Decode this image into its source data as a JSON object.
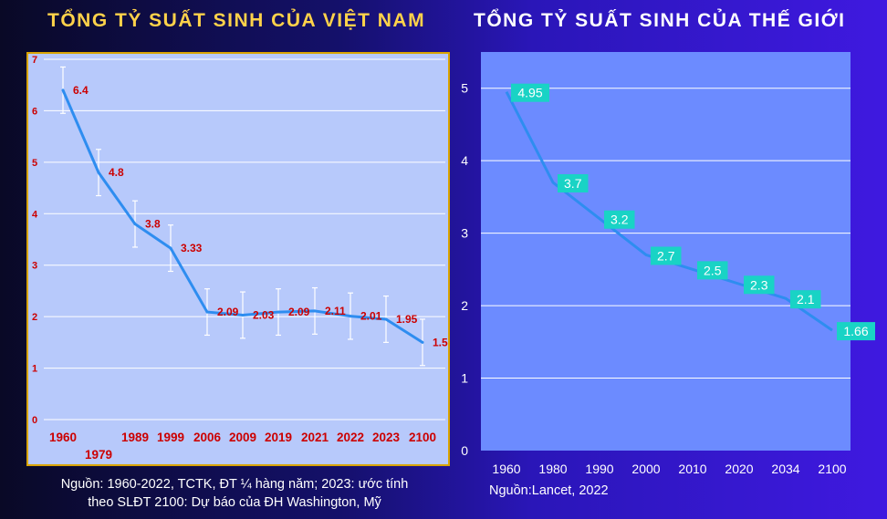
{
  "chart_data": [
    {
      "type": "line",
      "title": "TỔNG TỶ SUẤT SINH CỦA VIỆT NAM",
      "categories": [
        "1960",
        "1979",
        "1989",
        "1999",
        "2006",
        "2009",
        "2019",
        "2021",
        "2022",
        "2023",
        "2100"
      ],
      "series": [
        {
          "values": [
            6.4,
            4.8,
            3.8,
            3.33,
            2.09,
            2.03,
            2.09,
            2.11,
            2.01,
            1.95,
            1.5
          ]
        }
      ],
      "value_labels": [
        "6.4",
        "4.8",
        "3.8",
        "3.33",
        "2.09",
        "2.03",
        "2.09",
        "2.11",
        "2.01",
        "1.95",
        "1.5"
      ],
      "error_bars": [
        [
          5.95,
          6.85
        ],
        [
          4.35,
          5.25
        ],
        [
          3.35,
          4.25
        ],
        [
          2.88,
          3.78
        ],
        [
          1.64,
          2.54
        ],
        [
          1.58,
          2.48
        ],
        [
          1.64,
          2.54
        ],
        [
          1.66,
          2.56
        ],
        [
          1.56,
          2.46
        ],
        [
          1.5,
          2.4
        ],
        [
          1.05,
          1.95
        ]
      ],
      "yticks": [
        "0",
        "1",
        "2",
        "3",
        "4",
        "5",
        "6",
        "7"
      ],
      "ylim": [
        0,
        7
      ],
      "grid": true,
      "source": "Nguồn: 1960-2022, TCTK, ĐT ¼ hàng năm; 2023: ước tính theo SLĐT 2100:  Dự báo của ĐH Washington, Mỹ",
      "source_lines": [
        "Nguồn: 1960-2022, TCTK, ĐT ¼ hàng năm; 2023: ước tính",
        "theo SLĐT 2100:  Dự báo của ĐH Washington, Mỹ"
      ],
      "colors": {
        "plot_bg": "#b7c9fb",
        "border": "#d9a400",
        "line": "#2e8df0",
        "label": "#cc0000",
        "grid": "#ffffff"
      }
    },
    {
      "type": "line",
      "title": "TỔNG TỶ SUẤT SINH CỦA THẾ GIỚI",
      "categories": [
        "1960",
        "1980",
        "1990",
        "2000",
        "2010",
        "2020",
        "2034",
        "2100"
      ],
      "series": [
        {
          "values": [
            4.95,
            3.7,
            3.2,
            2.7,
            2.5,
            2.3,
            2.1,
            1.66
          ]
        }
      ],
      "value_labels": [
        "4.95",
        "3.7",
        "3.2",
        "2.7",
        "2.5",
        "2.3",
        "2.1",
        "1.66"
      ],
      "yticks": [
        "0",
        "1",
        "2",
        "3",
        "4",
        "5"
      ],
      "ylim": [
        0,
        5.5
      ],
      "grid": true,
      "source": "Nguồn:Lancet, 2022",
      "colors": {
        "plot_bg": "#6c8bff",
        "line": "#2e8df0",
        "label_bg": "#19d3c5",
        "label_text": "#ffffff",
        "grid": "#ffffff"
      }
    }
  ]
}
